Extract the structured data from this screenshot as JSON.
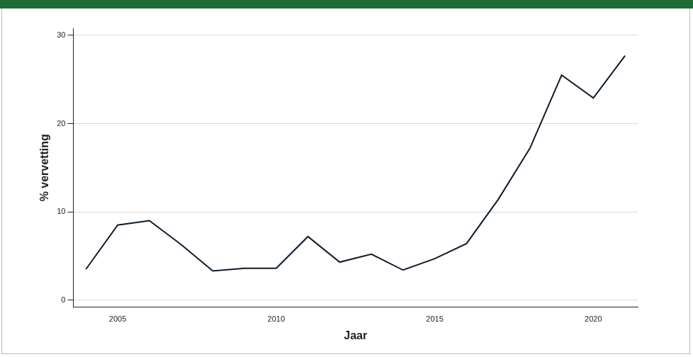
{
  "chart_data": {
    "type": "line",
    "x_label": "Jaar",
    "y_label": "% vervetting",
    "x": [
      2004,
      2005,
      2006,
      2007,
      2008,
      2009,
      2010,
      2011,
      2012,
      2013,
      2014,
      2015,
      2016,
      2017,
      2018,
      2019,
      2020,
      2021
    ],
    "values": [
      3.5,
      8.5,
      9.0,
      6.3,
      3.3,
      3.6,
      3.6,
      7.2,
      4.3,
      5.2,
      3.4,
      4.7,
      6.4,
      11.4,
      17.2,
      25.5,
      22.9,
      27.7
    ],
    "color": "#0d1b2a",
    "xlim": [
      2003.6,
      2021.4
    ],
    "xticks": [
      2005,
      2010,
      2015,
      2020
    ],
    "ylim": [
      -0.8,
      30.8
    ],
    "yticks": [
      0,
      10,
      20,
      30
    ],
    "grid": true
  }
}
